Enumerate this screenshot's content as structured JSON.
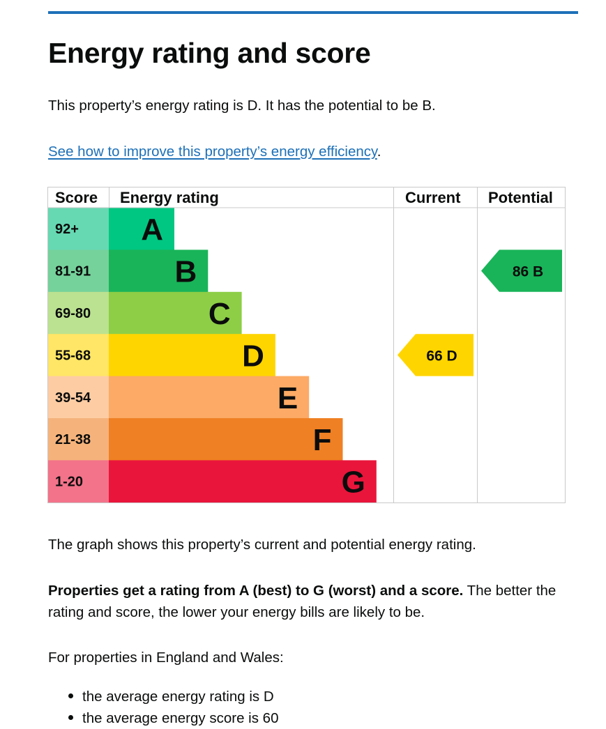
{
  "page": {
    "accent_color": "#1d70b8",
    "title": "Energy rating and score",
    "lead_text": "This property’s energy rating is D. It has the potential to be B.",
    "improve_link": "See how to improve this property’s energy efficiency",
    "improve_link_suffix": ".",
    "graph_text": "The graph shows this property’s current and potential energy rating.",
    "scale_bold": "Properties get a rating from A (best) to G (worst) and a score.",
    "scale_rest": " The better the rating and score, the lower your energy bills are likely to be.",
    "country_text": "For properties in England and Wales:",
    "bullets": [
      "the average energy rating is D",
      "the average energy score is 60"
    ]
  },
  "chart_data": {
    "type": "table",
    "columns": [
      "Score",
      "Energy rating",
      "Current",
      "Potential"
    ],
    "bands": [
      {
        "letter": "A",
        "score": "92+",
        "color": "#00c781",
        "score_color": "#66d9b3",
        "order": 1
      },
      {
        "letter": "B",
        "score": "81-91",
        "color": "#19b459",
        "score_color": "#75d29b",
        "order": 2
      },
      {
        "letter": "C",
        "score": "69-80",
        "color": "#8dce46",
        "score_color": "#bbe290",
        "order": 3
      },
      {
        "letter": "D",
        "score": "55-68",
        "color": "#ffd500",
        "score_color": "#ffe666",
        "order": 4
      },
      {
        "letter": "E",
        "score": "39-54",
        "color": "#fcaa65",
        "score_color": "#fdcca3",
        "order": 5
      },
      {
        "letter": "F",
        "score": "21-38",
        "color": "#ef8023",
        "score_color": "#f5b37b",
        "order": 6
      },
      {
        "letter": "G",
        "score": "1-20",
        "color": "#e9153b",
        "score_color": "#f2738a",
        "order": 7
      }
    ],
    "current": {
      "value": 66,
      "letter": "D",
      "label": "66  D",
      "color": "#ffd500"
    },
    "potential": {
      "value": 86,
      "letter": "B",
      "label": "86  B",
      "color": "#19b459"
    }
  }
}
